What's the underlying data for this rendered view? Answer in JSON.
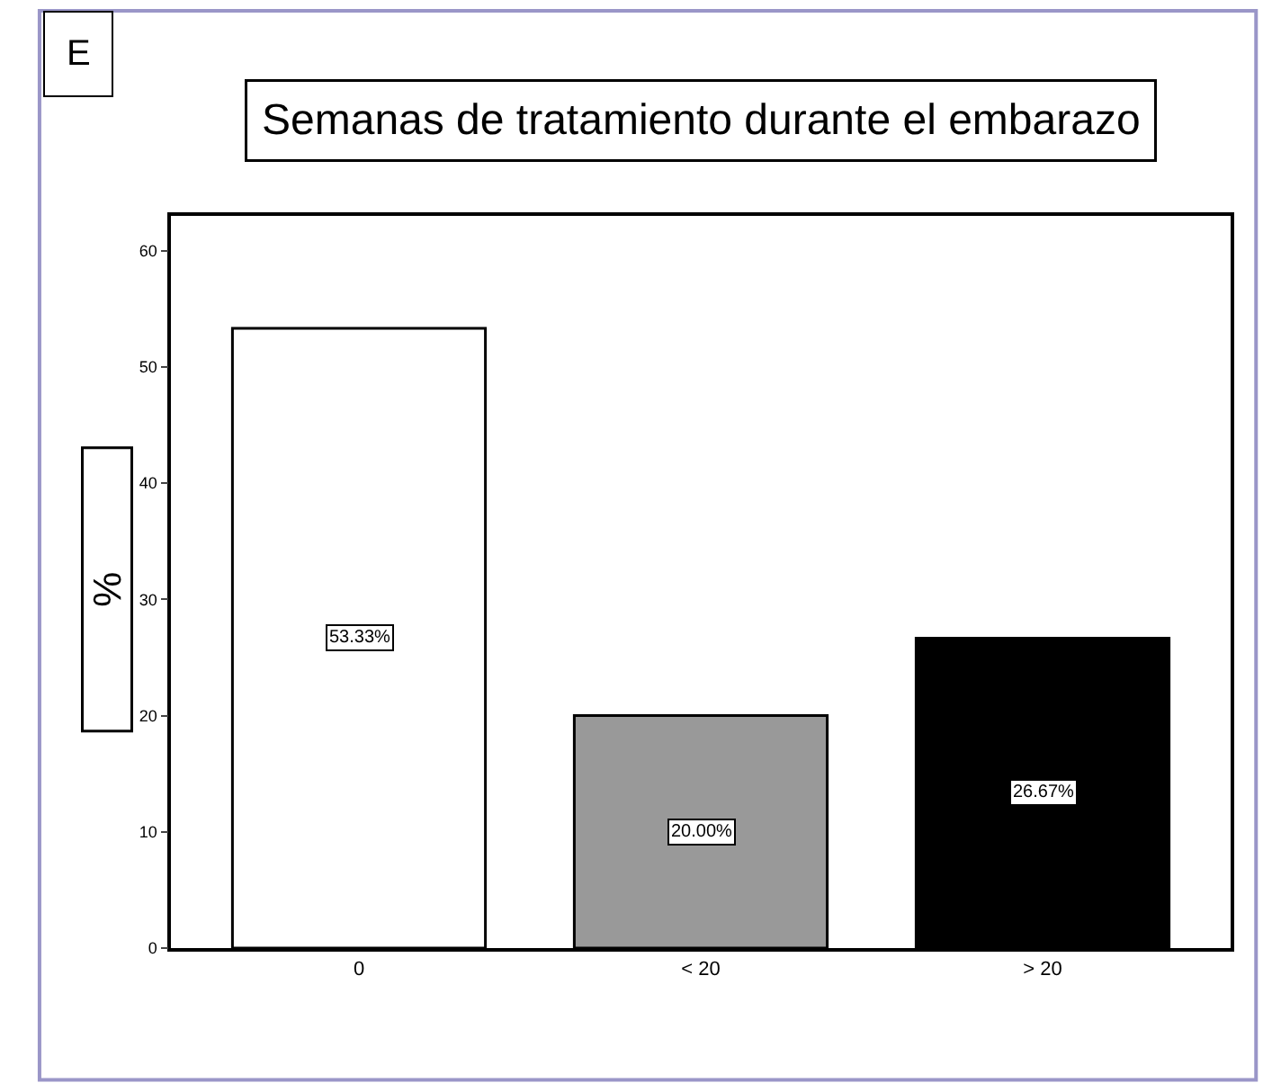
{
  "chart_data": {
    "type": "bar",
    "title": "Semanas de tratamiento durante el embarazo",
    "ylabel": "%",
    "annotations": [
      "E"
    ],
    "categories": [
      "0",
      "< 20",
      "> 20"
    ],
    "values": [
      53.33,
      20.0,
      26.67
    ],
    "colors": [
      "#ffffff",
      "#999999",
      "#000000"
    ],
    "value_labels": [
      "53.33%",
      "20.00%",
      "26.67%"
    ],
    "ylim": [
      0,
      63
    ],
    "yticks": [
      0,
      10,
      20,
      30,
      40,
      50,
      60
    ],
    "legend": false
  }
}
